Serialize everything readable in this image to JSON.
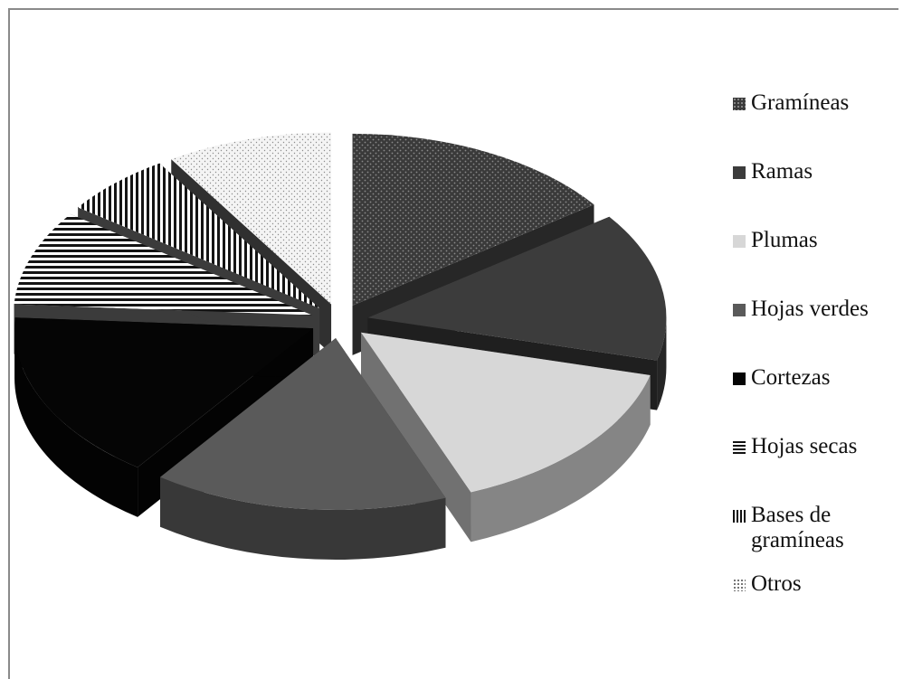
{
  "chart_data": {
    "type": "pie",
    "style": "exploded 3d",
    "legend_position": "right",
    "categories": [
      "Gramíneas",
      "Ramas",
      "Plumas",
      "Hojas verdes",
      "Cortezas",
      "Hojas secas",
      "Bases de gramíneas",
      "Otros"
    ],
    "values": [
      15,
      14,
      15,
      16,
      16,
      9,
      6,
      9
    ],
    "colors": [
      "#4a4a4a",
      "#3c3c3c",
      "#d7d7d7",
      "#5a5a5a",
      "#050505",
      "#ffffff",
      "#ffffff",
      "#f4f4f4"
    ],
    "patterns": [
      "dots-dark",
      "solid",
      "solid",
      "solid",
      "solid",
      "horizontal-stripes",
      "vertical-stripes",
      "dots-light"
    ],
    "legend_labels": [
      "Gramíneas",
      "Ramas",
      "Plumas",
      "Hojas verdes",
      "Cortezas",
      "Hojas secas",
      "Bases de\ngramíneas",
      "Otros"
    ]
  }
}
